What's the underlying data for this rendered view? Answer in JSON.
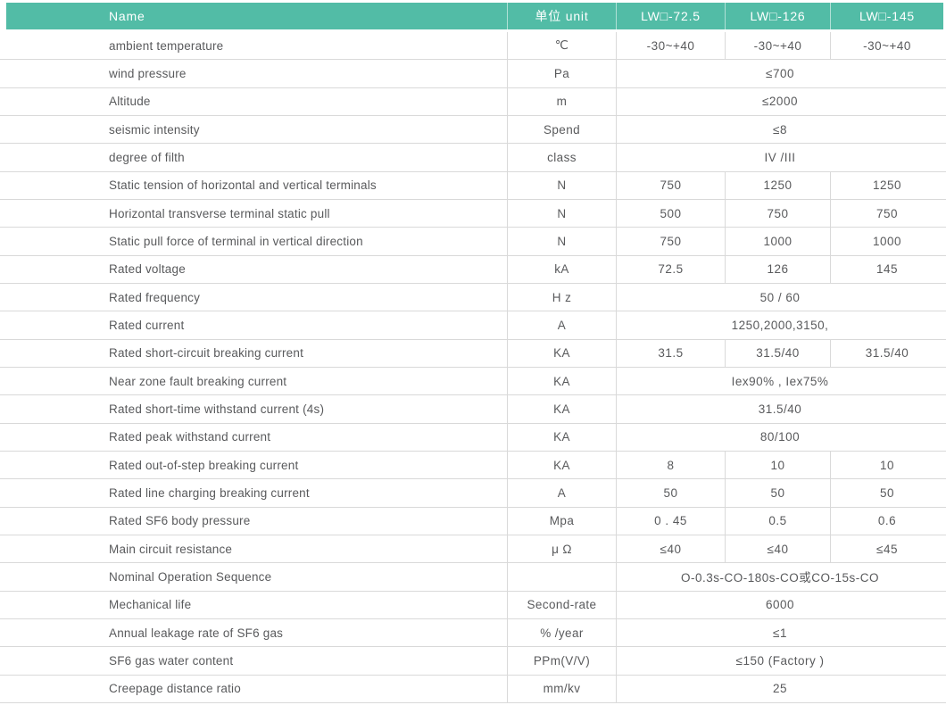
{
  "colors": {
    "header_bg": "#52bca6",
    "header_text": "#ffffff",
    "body_text": "#595a5c",
    "border": "#d9d9d9"
  },
  "table": {
    "columns": [
      "Name",
      "单位 unit",
      "LW□-72.5",
      "LW□-126",
      "LW□-145"
    ],
    "rows": [
      {
        "name": "ambient temperature",
        "unit": "℃",
        "values": [
          "-30~+40",
          "-30~+40",
          "-30~+40"
        ]
      },
      {
        "name": "wind pressure",
        "unit": "Pa",
        "merged": "≤700"
      },
      {
        "name": "Altitude",
        "unit": "m",
        "merged": "≤2000"
      },
      {
        "name": "seismic intensity",
        "unit": "Spend",
        "merged": "≤8"
      },
      {
        "name": "degree of filth",
        "unit": "class",
        "merged": "IV /III"
      },
      {
        "name": "Static tension of horizontal and vertical terminals",
        "unit": "N",
        "values": [
          "750",
          "1250",
          "1250"
        ]
      },
      {
        "name": "Horizontal transverse terminal static pull",
        "unit": "N",
        "values": [
          "500",
          "750",
          "750"
        ]
      },
      {
        "name": "Static pull force of terminal in vertical direction",
        "unit": "N",
        "values": [
          "750",
          "1000",
          "1000"
        ]
      },
      {
        "name": "Rated voltage",
        "unit": "kA",
        "values": [
          "72.5",
          "126",
          "145"
        ]
      },
      {
        "name": "Rated frequency",
        "unit": "H z",
        "merged": "50 / 60"
      },
      {
        "name": "Rated current",
        "unit": "A",
        "merged": "1250,2000,3150,"
      },
      {
        "name": "Rated short-circuit breaking current",
        "unit": "KA",
        "values": [
          "31.5",
          "31.5/40",
          "31.5/40"
        ]
      },
      {
        "name": "Near zone fault breaking current",
        "unit": "KA",
        "merged": "Iex90% , Iex75%"
      },
      {
        "name": "Rated short-time withstand current (4s)",
        "unit": "KA",
        "merged": "31.5/40"
      },
      {
        "name": "Rated peak withstand current",
        "unit": "KA",
        "merged": "80/100"
      },
      {
        "name": "Rated out-of-step breaking current",
        "unit": "KA",
        "values": [
          "8",
          "10",
          "10"
        ]
      },
      {
        "name": "Rated line charging breaking current",
        "unit": "A",
        "values": [
          "50",
          "50",
          "50"
        ]
      },
      {
        "name": "Rated SF6 body pressure",
        "unit": "Mpa",
        "values": [
          "0 . 45",
          "0.5",
          "0.6"
        ]
      },
      {
        "name": "Main circuit resistance",
        "unit": "μ Ω",
        "values": [
          "≤40",
          "≤40",
          "≤45"
        ]
      },
      {
        "name": "Nominal Operation Sequence",
        "unit": "",
        "merged": "O-0.3s-CO-180s-CO或CO-15s-CO"
      },
      {
        "name": "Mechanical life",
        "unit": "Second-rate",
        "merged": "6000"
      },
      {
        "name": "Annual leakage rate of SF6 gas",
        "unit": "% /year",
        "merged": "≤1"
      },
      {
        "name": "SF6 gas water content",
        "unit": "PPm(V/V)",
        "merged": "≤150 (Factory )"
      },
      {
        "name": "Creepage distance ratio",
        "unit": "mm/kv",
        "merged": "25"
      }
    ]
  }
}
